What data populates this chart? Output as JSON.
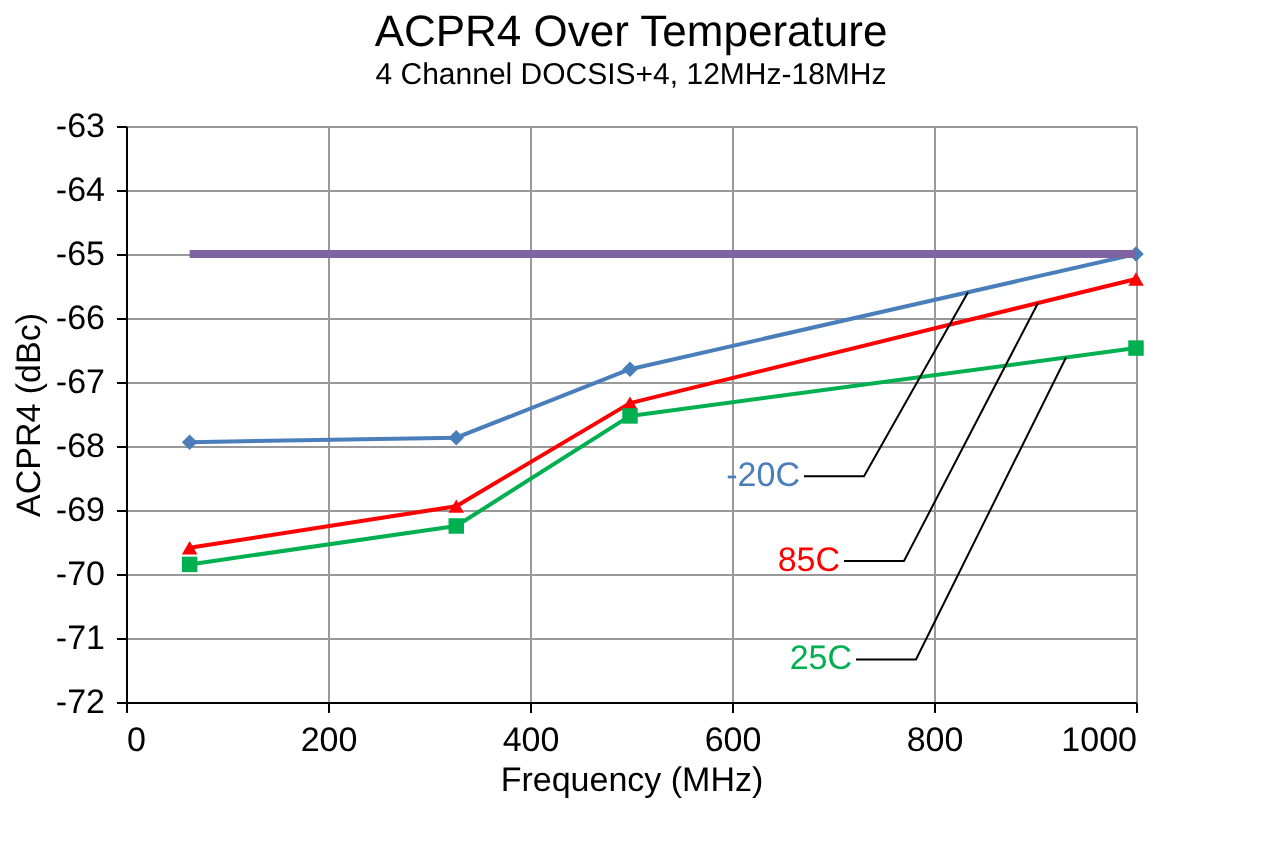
{
  "chart_data": {
    "type": "line",
    "title": "ACPR4 Over Temperature",
    "subtitle": "4 Channel DOCSIS+4, 12MHz-18MHz",
    "xlabel": "Frequency (MHz)",
    "ylabel": "ACPR4 (dBc)",
    "x": [
      63,
      327,
      499,
      1000
    ],
    "series": [
      {
        "name": "-20C",
        "color": "#4a7ebb",
        "marker": "diamond",
        "values": [
          -67.94,
          -67.87,
          -66.8,
          -65.0
        ]
      },
      {
        "name": "85C",
        "color": "#ff0000",
        "marker": "triangle",
        "values": [
          -69.59,
          -68.94,
          -67.33,
          -65.39
        ]
      },
      {
        "name": "25C",
        "color": "#00b050",
        "marker": "square",
        "values": [
          -69.85,
          -69.25,
          -67.53,
          -66.47
        ]
      },
      {
        "color": "#8064a2",
        "marker": "none",
        "x": [
          63,
          1000
        ],
        "values": [
          -65.0,
          -65.0
        ]
      }
    ],
    "xlim": [
      0,
      1000
    ],
    "xticks": [
      0,
      200,
      400,
      600,
      800,
      1000
    ],
    "ylim": [
      -72,
      -63
    ],
    "yticks": [
      -72,
      -71,
      -70,
      -69,
      -68,
      -67,
      -66,
      -65,
      -64,
      -63
    ],
    "grid": true,
    "line_style": "solid"
  }
}
